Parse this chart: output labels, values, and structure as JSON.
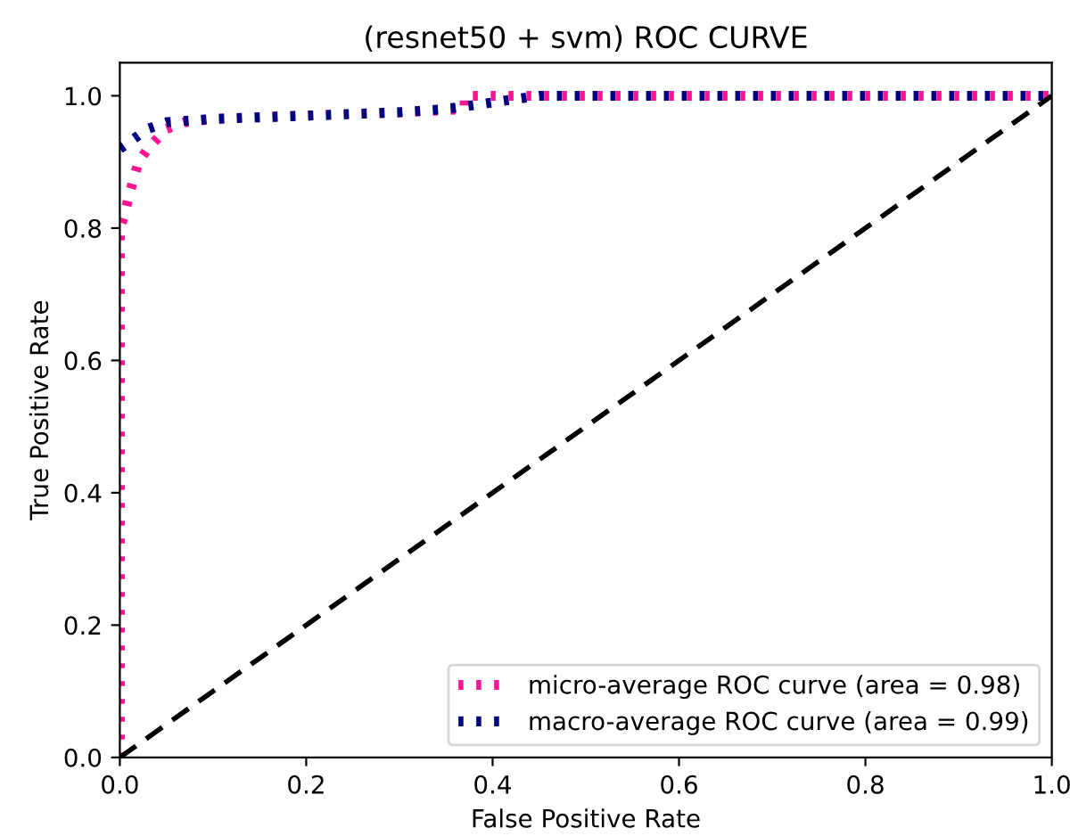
{
  "chart_data": {
    "type": "line",
    "title": "(resnet50 + svm) ROC CURVE",
    "xlabel": "False Positive Rate",
    "ylabel": "True Positive Rate",
    "xlim": [
      0.0,
      1.0
    ],
    "ylim": [
      0.0,
      1.05
    ],
    "xticks": [
      {
        "value": 0,
        "label": "0.0"
      },
      0.2,
      0.4,
      0.6,
      0.8,
      {
        "value": 1,
        "label": "1.0"
      }
    ],
    "yticks": [
      {
        "value": 0,
        "label": "0.0"
      },
      0.2,
      0.4,
      0.6,
      0.8,
      {
        "value": 1,
        "label": "1.0"
      }
    ],
    "grid": false,
    "legend": "bottom right",
    "marker": "none",
    "series": [
      {
        "name": "micro-average ROC curve (area = 0.98)",
        "color": "#ff1493",
        "line_style": "dotted",
        "x": [
          0,
          0,
          0.005,
          0.01,
          0.02,
          0.03,
          0.05,
          0.07,
          0.1,
          0.2,
          0.3,
          0.37,
          0.37,
          1.0
        ],
        "values": [
          0,
          0.8,
          0.82,
          0.85,
          0.9,
          0.92,
          0.95,
          0.96,
          0.965,
          0.97,
          0.975,
          0.98,
          1.0,
          1.0
        ]
      },
      {
        "name": "macro-average ROC curve (area = 0.99)",
        "color": "#000080",
        "line_style": "dotted",
        "x": [
          0,
          0.02,
          0.03,
          0.05,
          0.1,
          0.2,
          0.3,
          0.35,
          0.4,
          0.45,
          1.0
        ],
        "values": [
          0.92,
          0.94,
          0.95,
          0.96,
          0.965,
          0.97,
          0.975,
          0.98,
          0.99,
          1.0,
          1.0
        ]
      },
      {
        "color": "#000000",
        "line_style": "dashed",
        "x": [
          0,
          1
        ],
        "values": [
          0,
          1
        ]
      }
    ]
  }
}
